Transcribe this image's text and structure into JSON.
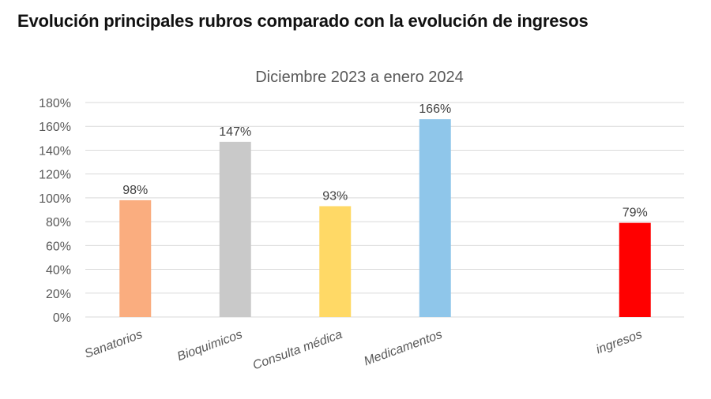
{
  "page_title": "Evolución principales rubros comparado con la evolución de ingresos",
  "chart_data": {
    "type": "bar",
    "title": "Diciembre 2023 a enero 2024",
    "categories": [
      "Sanatorios",
      "Bioquimicos",
      "Consulta médica",
      "Medicamentos",
      "ingresos"
    ],
    "values": [
      98,
      147,
      93,
      166,
      79
    ],
    "data_labels": [
      "98%",
      "147%",
      "93%",
      "166%",
      "79%"
    ],
    "colors": [
      "#FAAD7F",
      "#C9C9C9",
      "#FFD966",
      "#8FC6EA",
      "#FF0000"
    ],
    "xlabel": "",
    "ylabel": "",
    "ylim": [
      0,
      180
    ],
    "y_ticks": [
      0,
      20,
      40,
      60,
      80,
      100,
      120,
      140,
      160,
      180
    ],
    "y_tick_labels": [
      "0%",
      "20%",
      "40%",
      "60%",
      "80%",
      "100%",
      "120%",
      "140%",
      "160%",
      "180%"
    ],
    "grid": true,
    "legend": "none"
  }
}
